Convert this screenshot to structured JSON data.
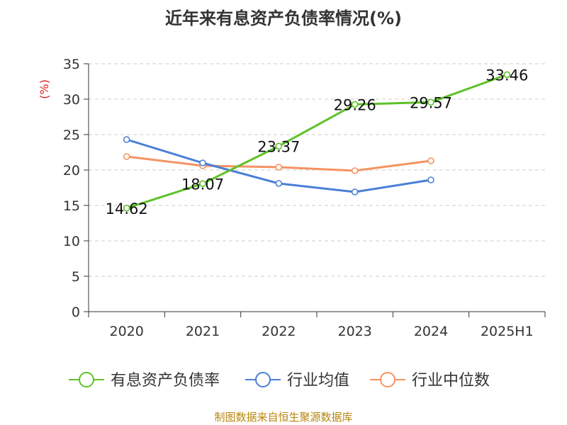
{
  "title": "近年来有息资产负债率情况(%)",
  "source": "制图数据来自恒生聚源数据库",
  "colors": {
    "series_1": "#5ec228",
    "series_2": "#4a7fd6",
    "series_3": "#f59361",
    "unit_label": "#e02020",
    "axis": "#333333",
    "grid": "#cccccc",
    "source": "#b8860b"
  },
  "chart_data": {
    "type": "line",
    "title": "近年来有息资产负债率情况(%)",
    "xlabel": "",
    "ylabel": "(%)",
    "categories": [
      "2020",
      "2021",
      "2022",
      "2023",
      "2024",
      "2025H1"
    ],
    "ylim": [
      0,
      35
    ],
    "yticks": [
      0,
      5,
      10,
      15,
      20,
      25,
      30,
      35
    ],
    "grid": true,
    "legend_position": "bottom",
    "series": [
      {
        "name": "有息资产负债率",
        "values": [
          14.62,
          18.07,
          23.37,
          29.26,
          29.57,
          33.46
        ],
        "labels": [
          "14.62",
          "18.07",
          "23.37",
          "29.26",
          "29.57",
          "33.46"
        ],
        "color": "#5ec228"
      },
      {
        "name": "行业均值",
        "values": [
          24.3,
          21.0,
          18.1,
          16.9,
          18.6,
          null
        ],
        "color": "#4a7fd6"
      },
      {
        "name": "行业中位数",
        "values": [
          21.9,
          20.6,
          20.4,
          19.9,
          21.3,
          null
        ],
        "color": "#f59361"
      }
    ]
  }
}
